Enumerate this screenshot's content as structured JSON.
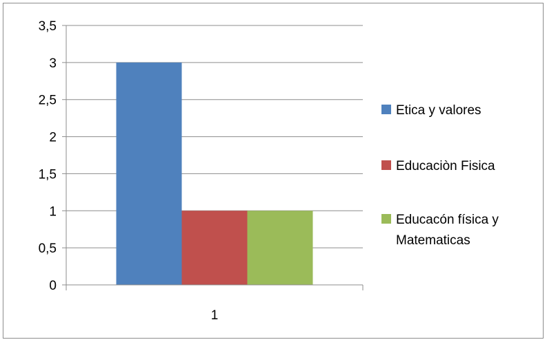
{
  "chart_data": {
    "type": "bar",
    "categories": [
      "1"
    ],
    "series": [
      {
        "name": "Etica y valores",
        "values": [
          3
        ],
        "color": "#4F81BD"
      },
      {
        "name": "Educaciòn Fisica",
        "values": [
          1
        ],
        "color": "#C0504D"
      },
      {
        "name": "Educacón física y Matematicas",
        "values": [
          1
        ],
        "color": "#9BBB59"
      }
    ],
    "yticks": [
      "0",
      "0,5",
      "1",
      "1,5",
      "2",
      "2,5",
      "3",
      "3,5"
    ],
    "ylim": [
      0,
      3.5
    ],
    "grid": true,
    "legend_position": "right"
  }
}
